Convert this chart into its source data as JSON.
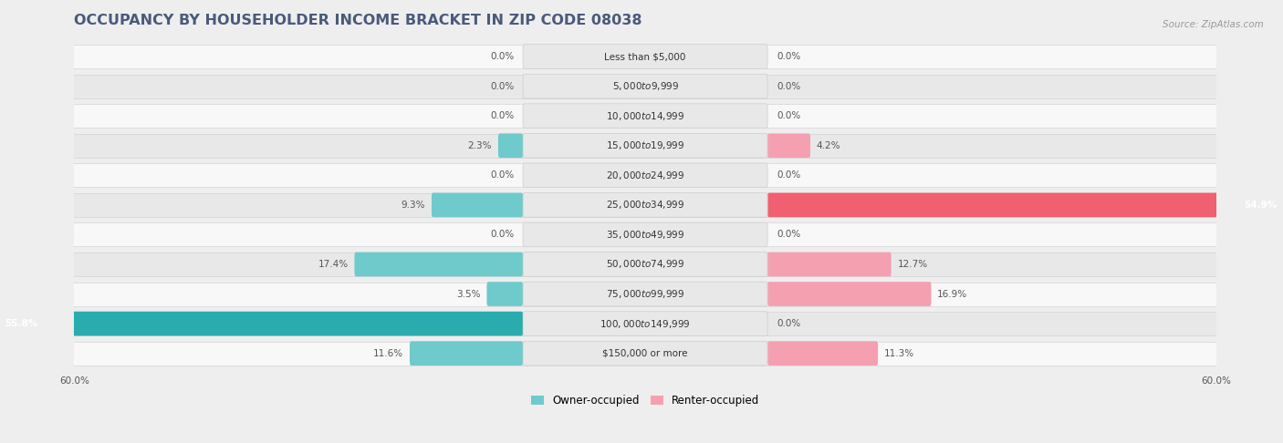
{
  "title": "OCCUPANCY BY HOUSEHOLDER INCOME BRACKET IN ZIP CODE 08038",
  "source": "Source: ZipAtlas.com",
  "categories": [
    "Less than $5,000",
    "$5,000 to $9,999",
    "$10,000 to $14,999",
    "$15,000 to $19,999",
    "$20,000 to $24,999",
    "$25,000 to $34,999",
    "$35,000 to $49,999",
    "$50,000 to $74,999",
    "$75,000 to $99,999",
    "$100,000 to $149,999",
    "$150,000 or more"
  ],
  "owner_values": [
    0.0,
    0.0,
    0.0,
    2.3,
    0.0,
    9.3,
    0.0,
    17.4,
    3.5,
    55.8,
    11.6
  ],
  "renter_values": [
    0.0,
    0.0,
    0.0,
    4.2,
    0.0,
    54.9,
    0.0,
    12.7,
    16.9,
    0.0,
    11.3
  ],
  "owner_color": "#6ecacb",
  "renter_color": "#f4a0b0",
  "owner_dark_color": "#2aacae",
  "renter_dark_color": "#f06070",
  "background_color": "#eeeeee",
  "row_bg_light": "#f8f8f8",
  "row_bg_dark": "#e8e8e8",
  "label_box_color": "#e0e0e0",
  "axis_max": 60.0,
  "title_color": "#4a5a7a",
  "title_fontsize": 11.5,
  "label_fontsize": 7.5,
  "cat_fontsize": 7.5,
  "value_fontsize": 7.5,
  "legend_fontsize": 8.5,
  "source_fontsize": 7.5
}
